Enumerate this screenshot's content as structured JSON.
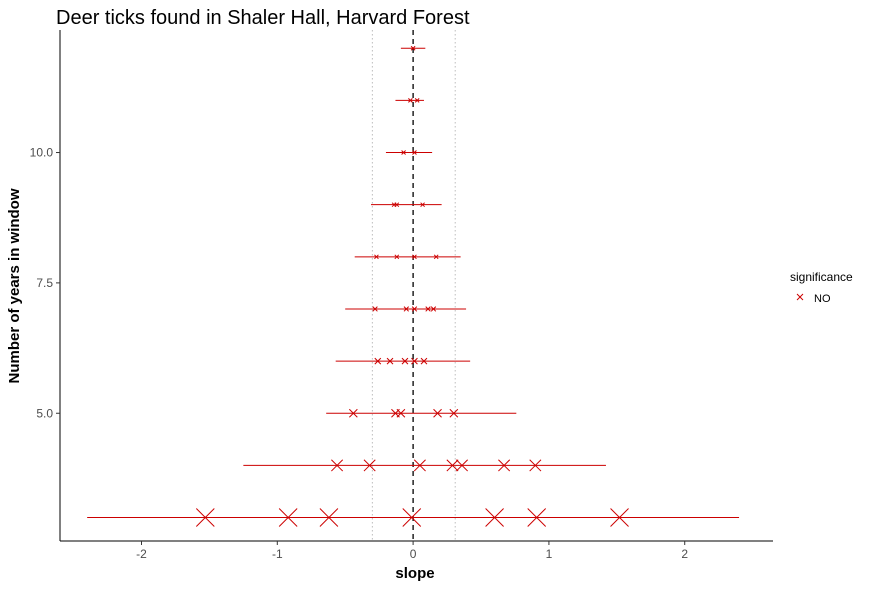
{
  "chart_data": {
    "type": "scatter",
    "title": "Deer ticks found in Shaler Hall, Harvard Forest",
    "xlabel": "slope",
    "ylabel": "Number of years in window",
    "xlim": [
      -2.6,
      2.65
    ],
    "ylim": [
      2.55,
      12.35
    ],
    "x_ticks": [
      -2,
      -1,
      0,
      1,
      2
    ],
    "x_tick_labels": [
      "-2",
      "-1",
      "0",
      "1",
      "2"
    ],
    "y_ticks": [
      5.0,
      7.5,
      10.0
    ],
    "y_tick_labels": [
      "5.0",
      "7.5",
      "10.0"
    ],
    "grid": false,
    "reference_lines": {
      "zero": 0,
      "dotted": [
        -0.3,
        0.31
      ]
    },
    "legend": {
      "title": "significance",
      "position": "right",
      "entries": [
        {
          "label": "NO",
          "color": "#cc0000",
          "marker": "x"
        }
      ]
    },
    "color": "#cc0000",
    "rows": [
      {
        "window": 3,
        "range": [
          -2.4,
          2.4
        ],
        "points": [
          -1.53,
          -0.92,
          -0.62,
          -0.01,
          0.6,
          0.91,
          1.52
        ]
      },
      {
        "window": 4,
        "range": [
          -1.25,
          1.42
        ],
        "points": [
          -0.56,
          -0.32,
          0.05,
          0.29,
          0.36,
          0.67,
          0.9
        ]
      },
      {
        "window": 5,
        "range": [
          -0.64,
          0.76
        ],
        "points": [
          -0.44,
          -0.13,
          -0.09,
          0.18,
          0.3
        ]
      },
      {
        "window": 6,
        "range": [
          -0.57,
          0.42
        ],
        "points": [
          -0.26,
          -0.17,
          -0.06,
          0.01,
          0.08
        ]
      },
      {
        "window": 7,
        "range": [
          -0.5,
          0.39
        ],
        "points": [
          -0.28,
          -0.05,
          0.01,
          0.11,
          0.15
        ]
      },
      {
        "window": 8,
        "range": [
          -0.43,
          0.35
        ],
        "points": [
          -0.27,
          -0.12,
          0.01,
          0.17
        ]
      },
      {
        "window": 9,
        "range": [
          -0.31,
          0.21
        ],
        "points": [
          -0.14,
          -0.12,
          0.07
        ]
      },
      {
        "window": 10,
        "range": [
          -0.2,
          0.14
        ],
        "points": [
          -0.07,
          0.01
        ]
      },
      {
        "window": 11,
        "range": [
          -0.13,
          0.08
        ],
        "points": [
          -0.02,
          0.03
        ]
      },
      {
        "window": 12,
        "range": [
          -0.09,
          0.09
        ],
        "points": [
          0.0
        ]
      }
    ]
  }
}
